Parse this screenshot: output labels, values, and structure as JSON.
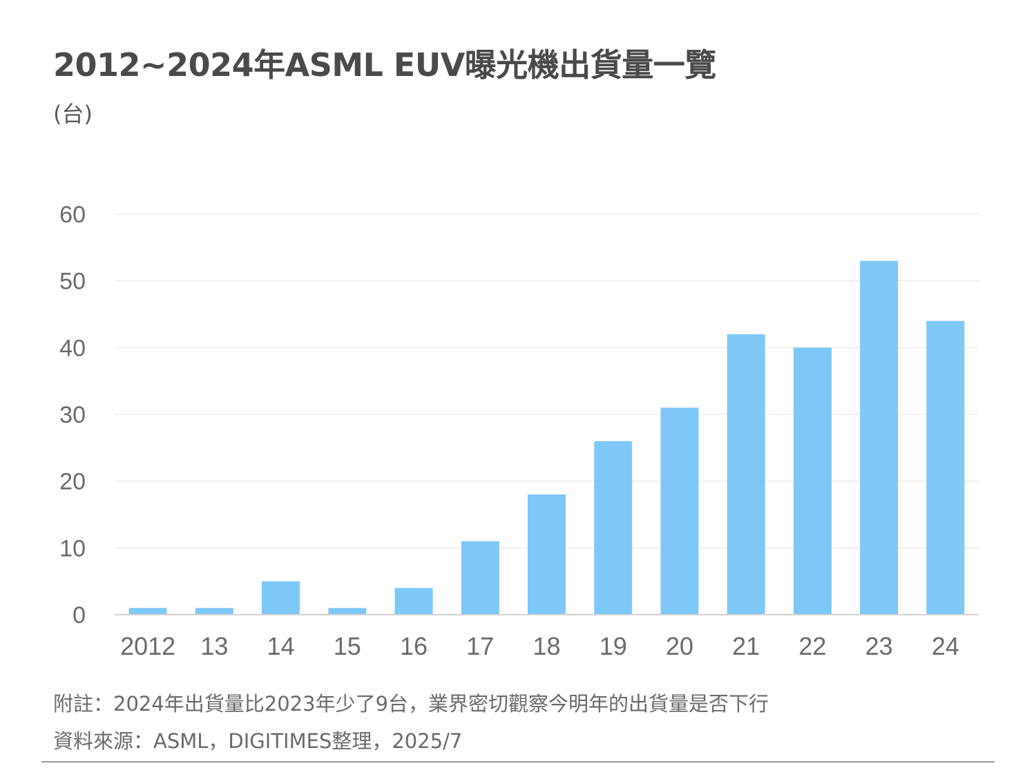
{
  "title": "2012~2024年ASML EUV曝光機出貨量一覽",
  "unit": "(台)",
  "chart_data": {
    "type": "bar",
    "title": "2012~2024年ASML EUV曝光機出貨量一覽",
    "ylabel": "(台)",
    "xlabel": "",
    "categories": [
      "2012",
      "13",
      "14",
      "15",
      "16",
      "17",
      "18",
      "19",
      "20",
      "21",
      "22",
      "23",
      "24"
    ],
    "values": [
      1,
      1,
      5,
      1,
      4,
      11,
      18,
      26,
      31,
      42,
      40,
      53,
      44
    ],
    "ylim": [
      0,
      60
    ],
    "yticks": [
      0,
      10,
      20,
      30,
      40,
      50,
      60
    ],
    "grid": true,
    "legend": "none",
    "bar_color": "#7ec8f8",
    "grid_color": "#e3e3e3",
    "axis_color": "#d4d4d4"
  },
  "footnote": "附註：2024年出貨量比2023年少了9台，業界密切觀察今明年的出貨量是否下行",
  "source": "資料來源：ASML，DIGITIMES整理，2025/7"
}
